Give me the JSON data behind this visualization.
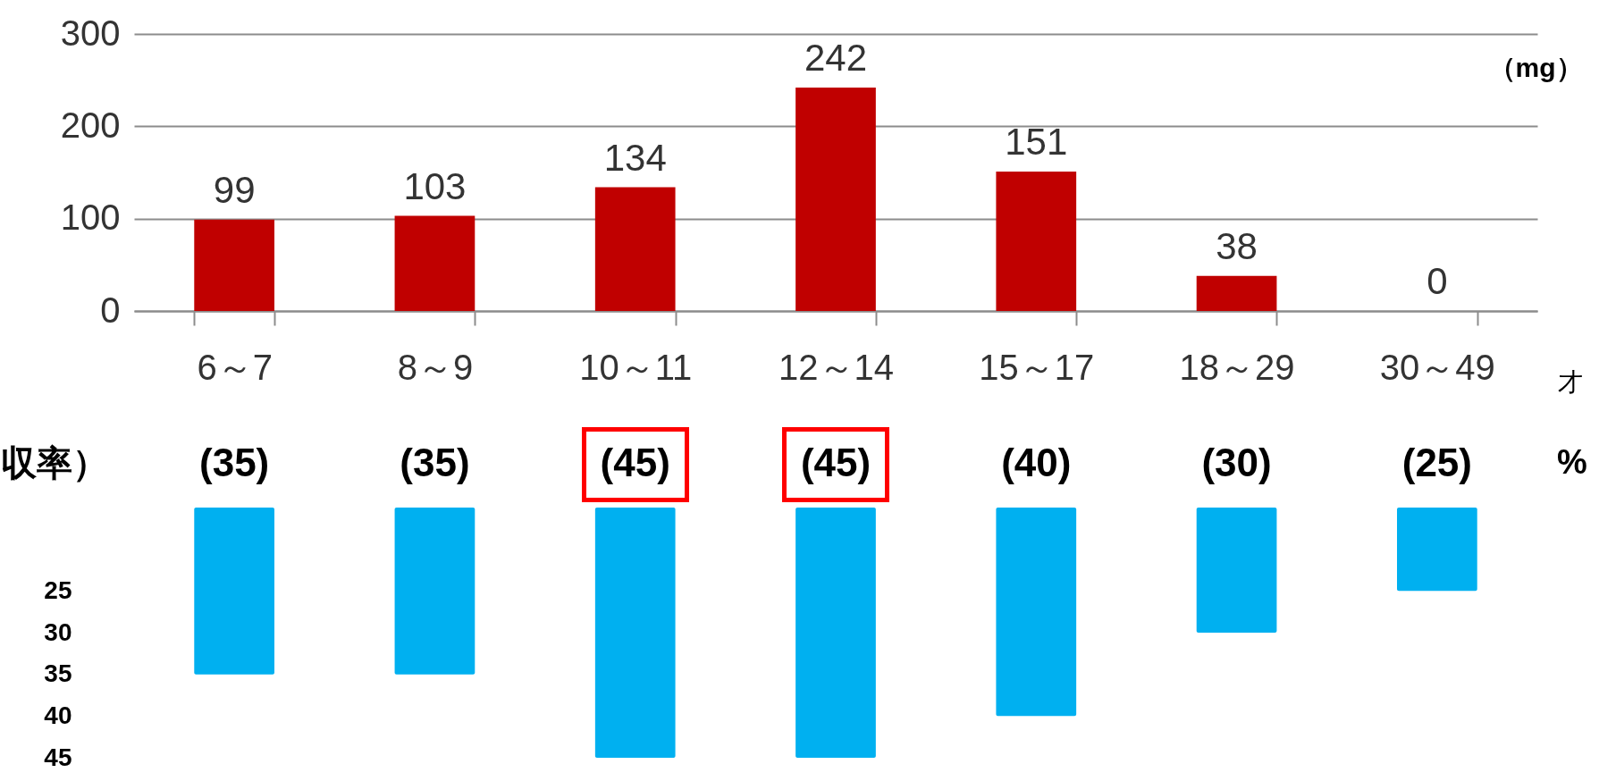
{
  "chart_data": [
    {
      "type": "bar",
      "ylabel": "（mg）",
      "xlabel": "才",
      "categories": [
        "6～7",
        "8～9",
        "10～11",
        "12～14",
        "15～17",
        "18～29",
        "30～49"
      ],
      "values": [
        99,
        103,
        134,
        242,
        151,
        38,
        0
      ],
      "color": "#c00000",
      "ylim": [
        0,
        300
      ],
      "yticks": [
        0,
        100,
        200,
        300
      ],
      "grid": "y",
      "data_labels": true
    },
    {
      "type": "bar",
      "ylabel": "収率）",
      "categories": [
        null,
        null,
        null,
        null,
        null,
        null,
        null
      ],
      "values": [
        35,
        35,
        45,
        45,
        40,
        30,
        25
      ],
      "value_labels": [
        "(35)",
        "(35)",
        "(45)",
        "(45)",
        "(40)",
        "(30)",
        "(25)"
      ],
      "color": "#00b0f0",
      "ylim": [
        45,
        15
      ],
      "yticks": [
        25,
        30,
        35,
        40,
        45
      ],
      "tick_labels": "y",
      "annotations": [
        "%"
      ]
    }
  ]
}
